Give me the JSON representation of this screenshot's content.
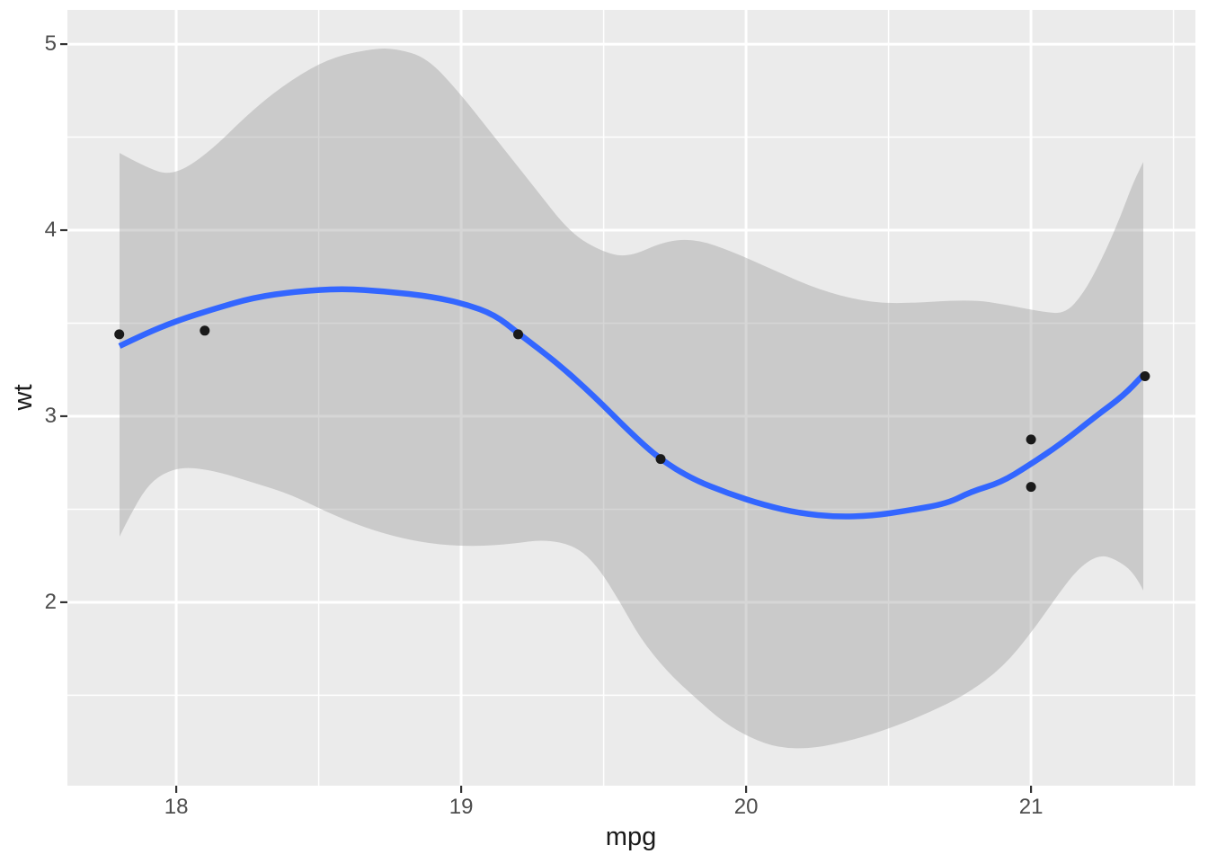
{
  "figure": {
    "background": "#FFFFFF",
    "panel_background": "#EBEBEB",
    "grid_color": "#FFFFFF",
    "axis_text_color": "#4D4D4D",
    "axis_title_color": "#1A1A1A",
    "tick_mark_color": "#333333"
  },
  "axes": {
    "x": {
      "title": "mpg",
      "tick_labels": [
        "18",
        "19",
        "20",
        "21"
      ],
      "tick_values": [
        18,
        19,
        20,
        21
      ],
      "minor_values": [
        18.5,
        19.5,
        20.5,
        21.5
      ]
    },
    "y": {
      "title": "wt",
      "tick_labels": [
        "5",
        "4",
        "3",
        "2"
      ],
      "tick_values": [
        5,
        4,
        3,
        2
      ],
      "minor_values": [
        4.5,
        3.5,
        2.5,
        1.5
      ]
    }
  },
  "chart_data": {
    "type": "scatter",
    "title": "",
    "xlabel": "mpg",
    "ylabel": "wt",
    "xlim": [
      17.618,
      21.577
    ],
    "ylim": [
      1.014,
      5.184
    ],
    "grid": "major+minor",
    "legend": "none",
    "point_color": "#1A1A1A",
    "points": [
      [
        17.8,
        3.44
      ],
      [
        18.1,
        3.46
      ],
      [
        19.2,
        3.44
      ],
      [
        19.7,
        2.77
      ],
      [
        21.0,
        2.875
      ],
      [
        21.0,
        2.62
      ],
      [
        21.4,
        3.215
      ]
    ],
    "smooth_line": {
      "color": "#3366FF",
      "points": [
        [
          17.801,
          3.377
        ],
        [
          17.886,
          3.44
        ],
        [
          18.0,
          3.512
        ],
        [
          18.139,
          3.58
        ],
        [
          18.271,
          3.638
        ],
        [
          18.423,
          3.671
        ],
        [
          18.58,
          3.686
        ],
        [
          18.738,
          3.671
        ],
        [
          18.896,
          3.643
        ],
        [
          19.013,
          3.604
        ],
        [
          19.117,
          3.546
        ],
        [
          19.202,
          3.444
        ],
        [
          19.338,
          3.285
        ],
        [
          19.464,
          3.111
        ],
        [
          19.59,
          2.918
        ],
        [
          19.694,
          2.773
        ],
        [
          19.811,
          2.662
        ],
        [
          19.937,
          2.585
        ],
        [
          20.063,
          2.522
        ],
        [
          20.189,
          2.478
        ],
        [
          20.315,
          2.459
        ],
        [
          20.442,
          2.464
        ],
        [
          20.568,
          2.493
        ],
        [
          20.707,
          2.531
        ],
        [
          20.789,
          2.594
        ],
        [
          20.893,
          2.643
        ],
        [
          20.991,
          2.734
        ],
        [
          21.104,
          2.85
        ],
        [
          21.227,
          3.0
        ],
        [
          21.325,
          3.111
        ],
        [
          21.394,
          3.222
        ]
      ]
    },
    "ribbon": {
      "fill": "rgba(153,153,153,0.4)",
      "upper": [
        [
          17.801,
          4.415
        ],
        [
          17.886,
          4.343
        ],
        [
          17.984,
          4.29
        ],
        [
          18.107,
          4.406
        ],
        [
          18.271,
          4.652
        ],
        [
          18.407,
          4.812
        ],
        [
          18.543,
          4.928
        ],
        [
          18.691,
          4.976
        ],
        [
          18.77,
          4.976
        ],
        [
          18.88,
          4.928
        ],
        [
          18.997,
          4.734
        ],
        [
          19.123,
          4.488
        ],
        [
          19.256,
          4.232
        ],
        [
          19.385,
          3.981
        ],
        [
          19.502,
          3.879
        ],
        [
          19.59,
          3.855
        ],
        [
          19.716,
          3.942
        ],
        [
          19.826,
          3.952
        ],
        [
          19.953,
          3.884
        ],
        [
          20.095,
          3.787
        ],
        [
          20.252,
          3.681
        ],
        [
          20.41,
          3.618
        ],
        [
          20.536,
          3.604
        ],
        [
          20.789,
          3.628
        ],
        [
          20.915,
          3.599
        ],
        [
          21.041,
          3.56
        ],
        [
          21.12,
          3.551
        ],
        [
          21.183,
          3.657
        ],
        [
          21.246,
          3.836
        ],
        [
          21.309,
          4.053
        ],
        [
          21.356,
          4.246
        ],
        [
          21.394,
          4.367
        ]
      ],
      "lower": [
        [
          17.801,
          2.353
        ],
        [
          17.839,
          2.469
        ],
        [
          17.893,
          2.614
        ],
        [
          17.95,
          2.691
        ],
        [
          18.028,
          2.729
        ],
        [
          18.139,
          2.705
        ],
        [
          18.271,
          2.643
        ],
        [
          18.401,
          2.58
        ],
        [
          18.53,
          2.483
        ],
        [
          18.662,
          2.401
        ],
        [
          18.792,
          2.343
        ],
        [
          18.921,
          2.309
        ],
        [
          19.054,
          2.3
        ],
        [
          19.18,
          2.314
        ],
        [
          19.29,
          2.338
        ],
        [
          19.401,
          2.304
        ],
        [
          19.479,
          2.193
        ],
        [
          19.558,
          2.0
        ],
        [
          19.628,
          1.807
        ],
        [
          19.722,
          1.628
        ],
        [
          19.817,
          1.493
        ],
        [
          19.918,
          1.357
        ],
        [
          20.016,
          1.27
        ],
        [
          20.114,
          1.217
        ],
        [
          20.237,
          1.213
        ],
        [
          20.379,
          1.261
        ],
        [
          20.508,
          1.324
        ],
        [
          20.641,
          1.406
        ],
        [
          20.77,
          1.502
        ],
        [
          20.903,
          1.652
        ],
        [
          21.01,
          1.855
        ],
        [
          21.098,
          2.048
        ],
        [
          21.164,
          2.179
        ],
        [
          21.237,
          2.256
        ],
        [
          21.297,
          2.232
        ],
        [
          21.363,
          2.159
        ],
        [
          21.394,
          2.063
        ]
      ]
    }
  }
}
